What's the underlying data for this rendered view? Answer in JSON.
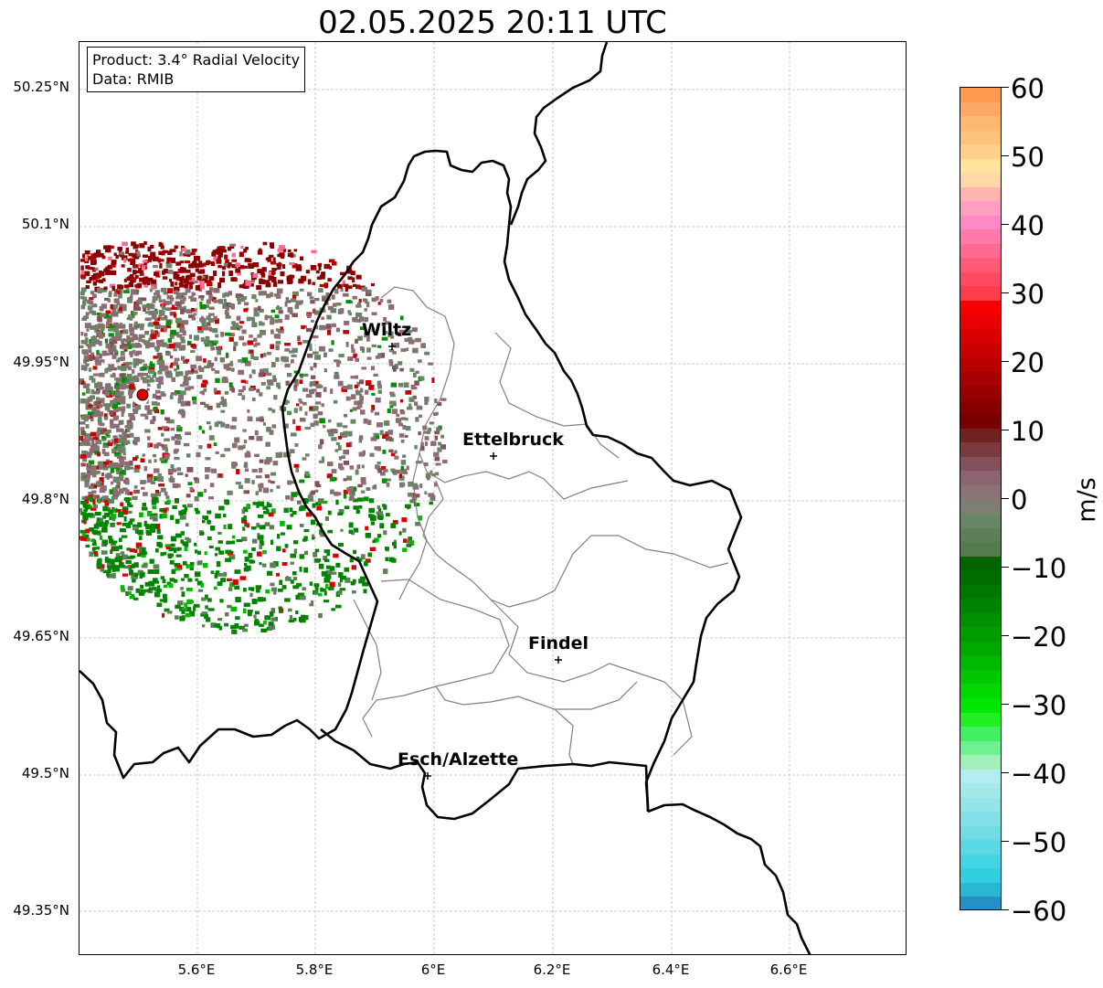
{
  "title": "02.05.2025 20:11 UTC",
  "info": {
    "product": "Product: 3.4° Radial Velocity",
    "source": "Data: RMIB"
  },
  "axes": {
    "lat_labels": [
      "50.25°N",
      "50.1°N",
      "49.95°N",
      "49.8°N",
      "49.65°N",
      "49.5°N",
      "49.35°N"
    ],
    "lon_labels": [
      "5.6°E",
      "5.8°E",
      "6°E",
      "6.2°E",
      "6.4°E",
      "6.6°E"
    ],
    "grid": true
  },
  "cities": [
    {
      "name": "Wiltz"
    },
    {
      "name": "Ettelbruck"
    },
    {
      "name": "Findel"
    },
    {
      "name": "Esch/Alzette"
    }
  ],
  "colorbar": {
    "unit": "m/s",
    "tick_labels": [
      "60",
      "50",
      "40",
      "30",
      "20",
      "10",
      "0",
      "−10",
      "−20",
      "−30",
      "−40",
      "−50",
      "−60"
    ],
    "min": -60,
    "max": 60
  },
  "colors": {
    "radar_site": "#e00000",
    "border": "#000000",
    "cantons": "#808080"
  }
}
